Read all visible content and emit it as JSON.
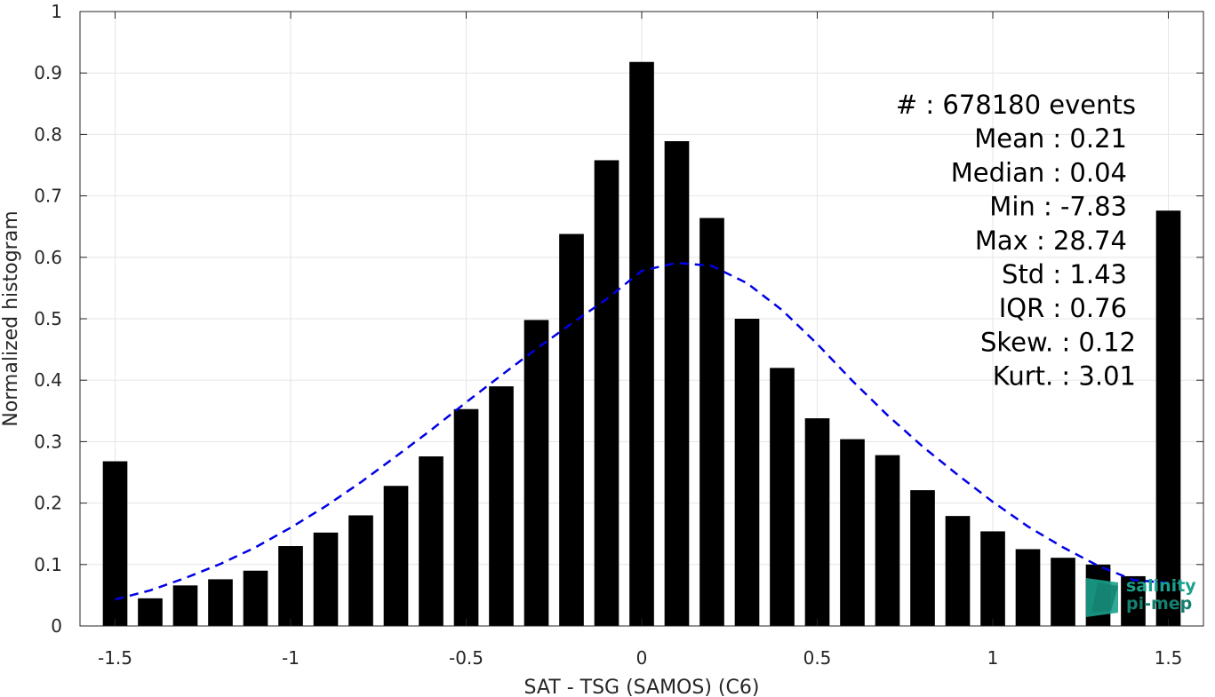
{
  "chart_data": {
    "type": "bar",
    "xlabel": "SAT - TSG (SAMOS) (C6)",
    "ylabel": "Normalized histogram",
    "xlim": [
      -1.6,
      1.6
    ],
    "ylim": [
      0,
      1
    ],
    "xticks": [
      -1.5,
      -1,
      -0.5,
      0,
      0.5,
      1,
      1.5
    ],
    "xtick_labels": [
      "-1.5",
      "-1",
      "-0.5",
      "0",
      "0.5",
      "1",
      "1.5"
    ],
    "yticks": [
      0,
      0.1,
      0.2,
      0.3,
      0.4,
      0.5,
      0.6,
      0.7,
      0.8,
      0.9,
      1
    ],
    "ytick_labels": [
      "0",
      "0.1",
      "0.2",
      "0.3",
      "0.4",
      "0.5",
      "0.6",
      "0.7",
      "0.8",
      "0.9",
      "1"
    ],
    "grid": true,
    "bar_color": "#000000",
    "bins": [
      -1.5,
      -1.4,
      -1.3,
      -1.2,
      -1.1,
      -1.0,
      -0.9,
      -0.8,
      -0.7,
      -0.6,
      -0.5,
      -0.4,
      -0.3,
      -0.2,
      -0.1,
      0.0,
      0.1,
      0.2,
      0.3,
      0.4,
      0.5,
      0.6,
      0.7,
      0.8,
      0.9,
      1.0,
      1.1,
      1.2,
      1.3,
      1.4,
      1.5
    ],
    "values": [
      0.268,
      0.045,
      0.066,
      0.076,
      0.09,
      0.13,
      0.152,
      0.18,
      0.228,
      0.276,
      0.353,
      0.39,
      0.498,
      0.638,
      0.758,
      0.918,
      0.789,
      0.664,
      0.5,
      0.42,
      0.338,
      0.304,
      0.278,
      0.221,
      0.179,
      0.154,
      0.125,
      0.111,
      0.1,
      0.081,
      0.676
    ],
    "fit_curve": {
      "style": "dashed",
      "color": "#0000e6",
      "x": [
        -1.5,
        -1.4,
        -1.3,
        -1.2,
        -1.1,
        -1.0,
        -0.9,
        -0.8,
        -0.7,
        -0.6,
        -0.5,
        -0.4,
        -0.3,
        -0.2,
        -0.1,
        0.0,
        0.1,
        0.2,
        0.3,
        0.4,
        0.5,
        0.6,
        0.7,
        0.8,
        0.9,
        1.0,
        1.1,
        1.2,
        1.3,
        1.4,
        1.5
      ],
      "y": [
        0.043,
        0.058,
        0.078,
        0.101,
        0.128,
        0.16,
        0.195,
        0.234,
        0.276,
        0.319,
        0.364,
        0.408,
        0.451,
        0.492,
        0.532,
        0.578,
        0.591,
        0.586,
        0.558,
        0.514,
        0.459,
        0.399,
        0.343,
        0.292,
        0.246,
        0.202,
        0.162,
        0.128,
        0.098,
        0.075,
        0.07
      ]
    },
    "annotations": [
      "#  : 678180 events",
      "Mean : 0.21",
      "Median : 0.04",
      "Min : -7.83",
      "Max : 28.74",
      "Std : 1.43",
      "IQR : 0.76",
      "Skew. : 0.12",
      "Kurt. : 3.01"
    ]
  },
  "logo": {
    "line1": "salinity",
    "line2": "pi-mep",
    "color": "#1aa08c"
  }
}
